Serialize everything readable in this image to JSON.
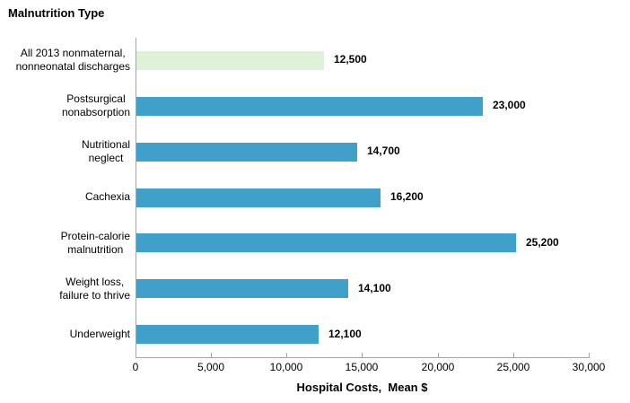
{
  "chart_data": {
    "type": "bar",
    "orientation": "horizontal",
    "title": "Malnutrition Type",
    "xlabel": "Hospital Costs,  Mean $",
    "categories": [
      "All 2013 nonmaternal,\nnonneonatal discharges",
      "Postsurgical\nnonabsorption",
      "Nutritional\nneglect",
      "Cachexia",
      "Protein-calorie\nmalnutrition",
      "Weight loss,\nfailure to thrive",
      "Underweight"
    ],
    "values": [
      12500,
      23000,
      14700,
      16200,
      25200,
      14100,
      12100
    ],
    "value_labels": [
      "12,500",
      "23,000",
      "14,700",
      "16,200",
      "25,200",
      "14,100",
      "12,100"
    ],
    "bar_colors": [
      "#def2d8",
      "#41a0c9",
      "#41a0c9",
      "#41a0c9",
      "#41a0c9",
      "#41a0c9",
      "#41a0c9"
    ],
    "xlim": [
      0,
      30000
    ],
    "xticks": [
      0,
      5000,
      10000,
      15000,
      20000,
      25000,
      30000
    ],
    "xtick_labels": [
      "0",
      "5,000",
      "10,000",
      "15,000",
      "20,000",
      "25,000",
      "30,000"
    ],
    "grid": false,
    "legend": "none",
    "colors": {
      "default_bar": "#41a0c9",
      "highlight_bar": "#def2d8",
      "axis": "#a6a6a6",
      "text": "#000000",
      "background": "#ffffff"
    }
  }
}
